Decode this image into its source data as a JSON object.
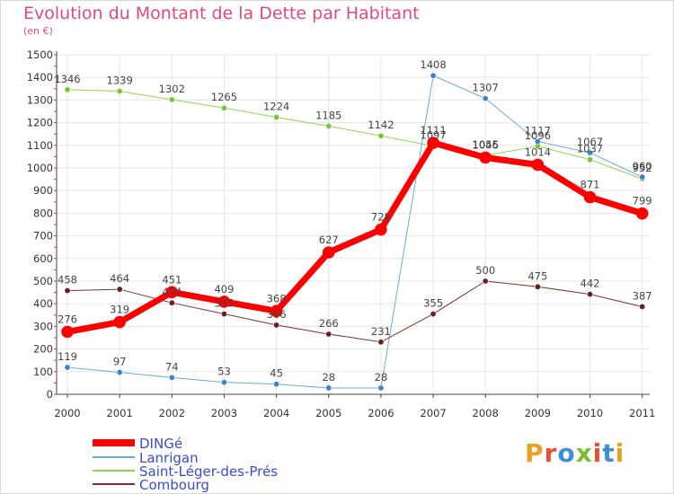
{
  "title": "Evolution du Montant de la Dette par Habitant",
  "unit": "(en €)",
  "logo": {
    "text": "Proxiti",
    "colors": [
      "#e8a21e",
      "#e94e3c",
      "#3b8fd6",
      "#7dbb34",
      "#e94e3c",
      "#3b8fd6",
      "#e8a21e"
    ]
  },
  "chart_data": {
    "type": "line",
    "x": [
      "2000",
      "2001",
      "2002",
      "2003",
      "2004",
      "2005",
      "2006",
      "2007",
      "2008",
      "2009",
      "2010",
      "2011"
    ],
    "ylim": [
      0,
      1500
    ],
    "yticks": [
      "0",
      "100",
      "200",
      "300",
      "400",
      "500",
      "600",
      "700",
      "800",
      "900",
      "1000",
      "1100",
      "1200",
      "1300",
      "1400",
      "1500"
    ],
    "grid": true,
    "legend_position": "bottom-left",
    "series": [
      {
        "name": "Saint-Léger-des-Prés",
        "color": "#8fd64a",
        "marker": "#79c33a",
        "width": 1,
        "values": [
          1346,
          1339,
          1302,
          1265,
          1224,
          1185,
          1142,
          1097,
          1055,
          1096,
          1037,
          952
        ],
        "labels": [
          "1346",
          "1339",
          "1302",
          "1265",
          "1224",
          "1185",
          "1142",
          "1097",
          "1055",
          "1096",
          "1037",
          "952"
        ]
      },
      {
        "name": "Lanrigan",
        "color": "#6fa8d6",
        "marker": "#3a86c8",
        "width": 1,
        "values": [
          119,
          97,
          74,
          53,
          45,
          28,
          28,
          1408,
          1307,
          1117,
          1067,
          960
        ],
        "labels": [
          "119",
          "97",
          "74",
          "53",
          "45",
          "28",
          "28",
          "1408",
          "1307",
          "1117",
          "1067",
          "960"
        ]
      },
      {
        "name": "Combourg",
        "color": "#7a3030",
        "marker": "#6a2020",
        "width": 1,
        "values": [
          458,
          464,
          404,
          355,
          306,
          266,
          231,
          355,
          500,
          475,
          442,
          387
        ],
        "labels": [
          "458",
          "464",
          "404",
          "355",
          "306",
          "266",
          "231",
          "355",
          "500",
          "475",
          "442",
          "387"
        ]
      },
      {
        "name": "DINGé",
        "color": "#ff0000",
        "marker": "#ff0000",
        "width": 7,
        "values": [
          276,
          319,
          451,
          409,
          368,
          627,
          728,
          1111,
          1046,
          1014,
          871,
          799
        ],
        "labels": [
          "276",
          "319",
          "451",
          "409",
          "368",
          "627",
          "728",
          "1111",
          "1046",
          "1014",
          "871",
          "799"
        ]
      }
    ],
    "legend_order": [
      3,
      1,
      0,
      2
    ]
  }
}
